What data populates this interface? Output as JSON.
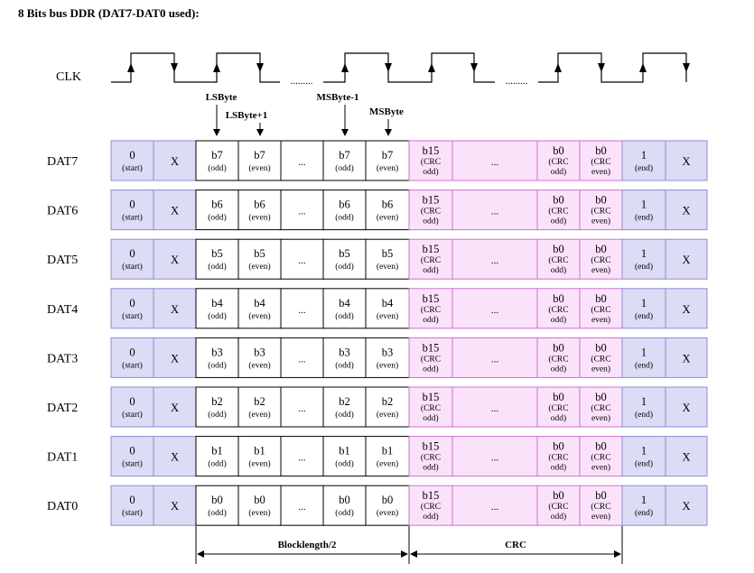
{
  "title": "8 Bits bus DDR (DAT7-DAT0 used):",
  "clock": {
    "label": "CLK",
    "gap_text": "........."
  },
  "markers": {
    "lsbyte": "LSByte",
    "lsbyte_plus1": "LSByte+1",
    "msbyte_minus1": "MSByte-1",
    "msbyte": "MSByte"
  },
  "lines": [
    {
      "label": "DAT7",
      "bit": "b7"
    },
    {
      "label": "DAT6",
      "bit": "b6"
    },
    {
      "label": "DAT5",
      "bit": "b5"
    },
    {
      "label": "DAT4",
      "bit": "b4"
    },
    {
      "label": "DAT3",
      "bit": "b3"
    },
    {
      "label": "DAT2",
      "bit": "b2"
    },
    {
      "label": "DAT1",
      "bit": "b1"
    },
    {
      "label": "DAT0",
      "bit": "b0"
    }
  ],
  "cells": {
    "start_value": "0",
    "start_note": "(start)",
    "x": "X",
    "odd": "(odd)",
    "even": "(even)",
    "dots": "...",
    "crc_high": "b15",
    "crc_low": "b0",
    "crc_sub1": "(CRC",
    "crc_sub_odd": "odd)",
    "crc_sub_even": "even)",
    "end_value": "1",
    "end_note": "(end)"
  },
  "spans": {
    "block": "Blocklength/2",
    "crc": "CRC"
  },
  "colors": {
    "blue_fill": "#dcdcf6",
    "blue_border": "#8c8cd2",
    "data_border": "#000000",
    "crc_fill": "#fbe2fb",
    "crc_border": "#d070d0"
  }
}
